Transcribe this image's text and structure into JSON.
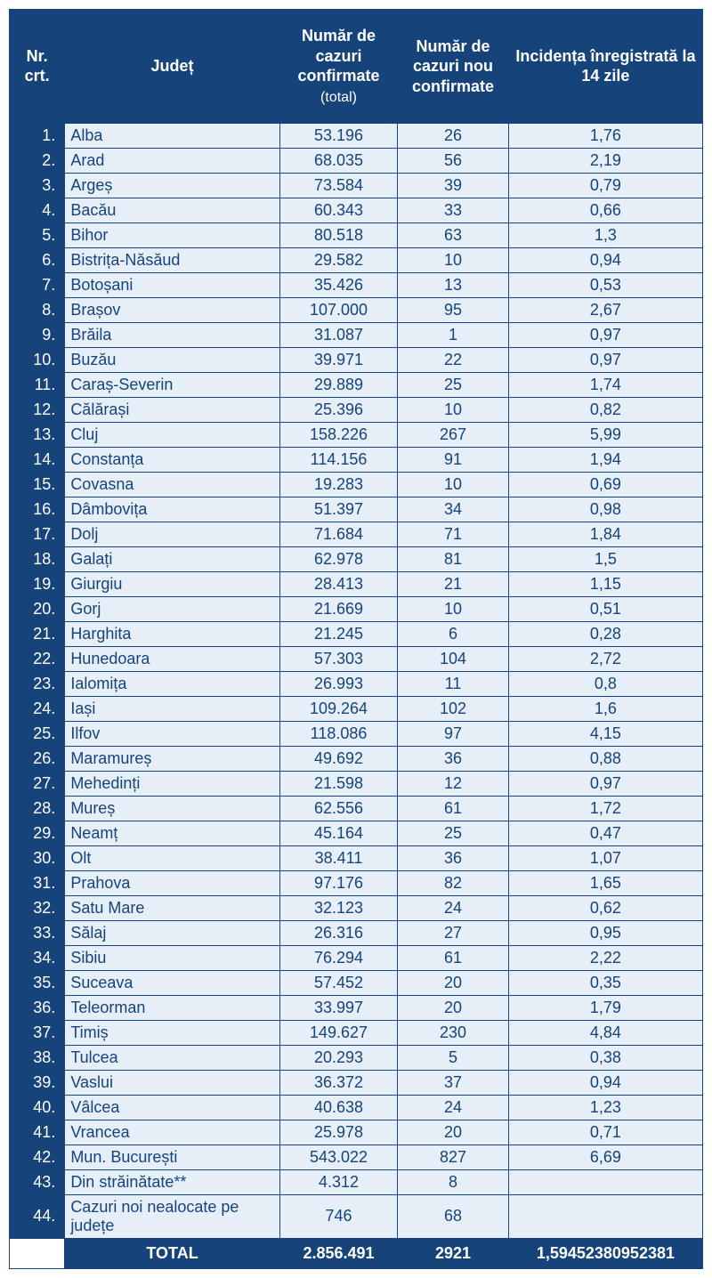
{
  "headers": {
    "nr": "Nr. crt.",
    "judet": "Județ",
    "total_line1": "Număr de cazuri confirmate",
    "total_line2": "(total)",
    "new": "Număr de cazuri nou confirmate",
    "incidence": "Incidența înregistrată la 14 zile"
  },
  "total_row": {
    "label": "TOTAL",
    "total": "2.856.491",
    "new": "2921",
    "incidence": "1,59452380952381"
  },
  "rows": [
    {
      "nr": "1.",
      "judet": "Alba",
      "total": "53.196",
      "new": "26",
      "inc": "1,76"
    },
    {
      "nr": "2.",
      "judet": "Arad",
      "total": "68.035",
      "new": "56",
      "inc": "2,19"
    },
    {
      "nr": "3.",
      "judet": "Argeș",
      "total": "73.584",
      "new": "39",
      "inc": "0,79"
    },
    {
      "nr": "4.",
      "judet": "Bacău",
      "total": "60.343",
      "new": "33",
      "inc": "0,66"
    },
    {
      "nr": "5.",
      "judet": "Bihor",
      "total": "80.518",
      "new": "63",
      "inc": "1,3"
    },
    {
      "nr": "6.",
      "judet": "Bistrița-Năsăud",
      "total": "29.582",
      "new": "10",
      "inc": "0,94"
    },
    {
      "nr": "7.",
      "judet": "Botoșani",
      "total": "35.426",
      "new": "13",
      "inc": "0,53"
    },
    {
      "nr": "8.",
      "judet": "Brașov",
      "total": "107.000",
      "new": "95",
      "inc": "2,67"
    },
    {
      "nr": "9.",
      "judet": "Brăila",
      "total": "31.087",
      "new": "1",
      "inc": "0,97"
    },
    {
      "nr": "10.",
      "judet": "Buzău",
      "total": "39.971",
      "new": "22",
      "inc": "0,97"
    },
    {
      "nr": "11.",
      "judet": "Caraș-Severin",
      "total": "29.889",
      "new": "25",
      "inc": "1,74"
    },
    {
      "nr": "12.",
      "judet": "Călărași",
      "total": "25.396",
      "new": "10",
      "inc": "0,82"
    },
    {
      "nr": "13.",
      "judet": "Cluj",
      "total": "158.226",
      "new": "267",
      "inc": "5,99"
    },
    {
      "nr": "14.",
      "judet": "Constanța",
      "total": "114.156",
      "new": "91",
      "inc": "1,94"
    },
    {
      "nr": "15.",
      "judet": "Covasna",
      "total": "19.283",
      "new": "10",
      "inc": "0,69"
    },
    {
      "nr": "16.",
      "judet": "Dâmbovița",
      "total": "51.397",
      "new": "34",
      "inc": "0,98"
    },
    {
      "nr": "17.",
      "judet": "Dolj",
      "total": "71.684",
      "new": "71",
      "inc": "1,84"
    },
    {
      "nr": "18.",
      "judet": "Galați",
      "total": "62.978",
      "new": "81",
      "inc": "1,5"
    },
    {
      "nr": "19.",
      "judet": "Giurgiu",
      "total": "28.413",
      "new": "21",
      "inc": "1,15"
    },
    {
      "nr": "20.",
      "judet": "Gorj",
      "total": "21.669",
      "new": "10",
      "inc": "0,51"
    },
    {
      "nr": "21.",
      "judet": "Harghita",
      "total": "21.245",
      "new": "6",
      "inc": "0,28"
    },
    {
      "nr": "22.",
      "judet": "Hunedoara",
      "total": "57.303",
      "new": "104",
      "inc": "2,72"
    },
    {
      "nr": "23.",
      "judet": "Ialomița",
      "total": "26.993",
      "new": "11",
      "inc": "0,8"
    },
    {
      "nr": "24.",
      "judet": "Iași",
      "total": "109.264",
      "new": "102",
      "inc": "1,6"
    },
    {
      "nr": "25.",
      "judet": "Ilfov",
      "total": "118.086",
      "new": "97",
      "inc": "4,15"
    },
    {
      "nr": "26.",
      "judet": "Maramureș",
      "total": "49.692",
      "new": "36",
      "inc": "0,88"
    },
    {
      "nr": "27.",
      "judet": "Mehedinți",
      "total": "21.598",
      "new": "12",
      "inc": "0,97"
    },
    {
      "nr": "28.",
      "judet": "Mureș",
      "total": "62.556",
      "new": "61",
      "inc": "1,72"
    },
    {
      "nr": "29.",
      "judet": "Neamț",
      "total": "45.164",
      "new": "25",
      "inc": "0,47"
    },
    {
      "nr": "30.",
      "judet": "Olt",
      "total": "38.411",
      "new": "36",
      "inc": "1,07"
    },
    {
      "nr": "31.",
      "judet": "Prahova",
      "total": "97.176",
      "new": "82",
      "inc": "1,65"
    },
    {
      "nr": "32.",
      "judet": "Satu Mare",
      "total": "32.123",
      "new": "24",
      "inc": "0,62"
    },
    {
      "nr": "33.",
      "judet": "Sălaj",
      "total": "26.316",
      "new": "27",
      "inc": "0,95"
    },
    {
      "nr": "34.",
      "judet": "Sibiu",
      "total": "76.294",
      "new": "61",
      "inc": "2,22"
    },
    {
      "nr": "35.",
      "judet": "Suceava",
      "total": "57.452",
      "new": "20",
      "inc": "0,35"
    },
    {
      "nr": "36.",
      "judet": "Teleorman",
      "total": "33.997",
      "new": "20",
      "inc": "1,79"
    },
    {
      "nr": "37.",
      "judet": "Timiș",
      "total": "149.627",
      "new": "230",
      "inc": "4,84"
    },
    {
      "nr": "38.",
      "judet": "Tulcea",
      "total": "20.293",
      "new": "5",
      "inc": "0,38"
    },
    {
      "nr": "39.",
      "judet": "Vaslui",
      "total": "36.372",
      "new": "37",
      "inc": "0,94"
    },
    {
      "nr": "40.",
      "judet": "Vâlcea",
      "total": "40.638",
      "new": "24",
      "inc": "1,23"
    },
    {
      "nr": "41.",
      "judet": "Vrancea",
      "total": "25.978",
      "new": "20",
      "inc": "0,71"
    },
    {
      "nr": "42.",
      "judet": "Mun. București",
      "total": "543.022",
      "new": "827",
      "inc": "6,69"
    },
    {
      "nr": "43.",
      "judet": "Din străinătate**",
      "total": "4.312",
      "new": "8",
      "inc": ""
    },
    {
      "nr": "44.",
      "judet": "Cazuri noi nealocate pe județe",
      "total": "746",
      "new": "68",
      "inc": ""
    }
  ]
}
